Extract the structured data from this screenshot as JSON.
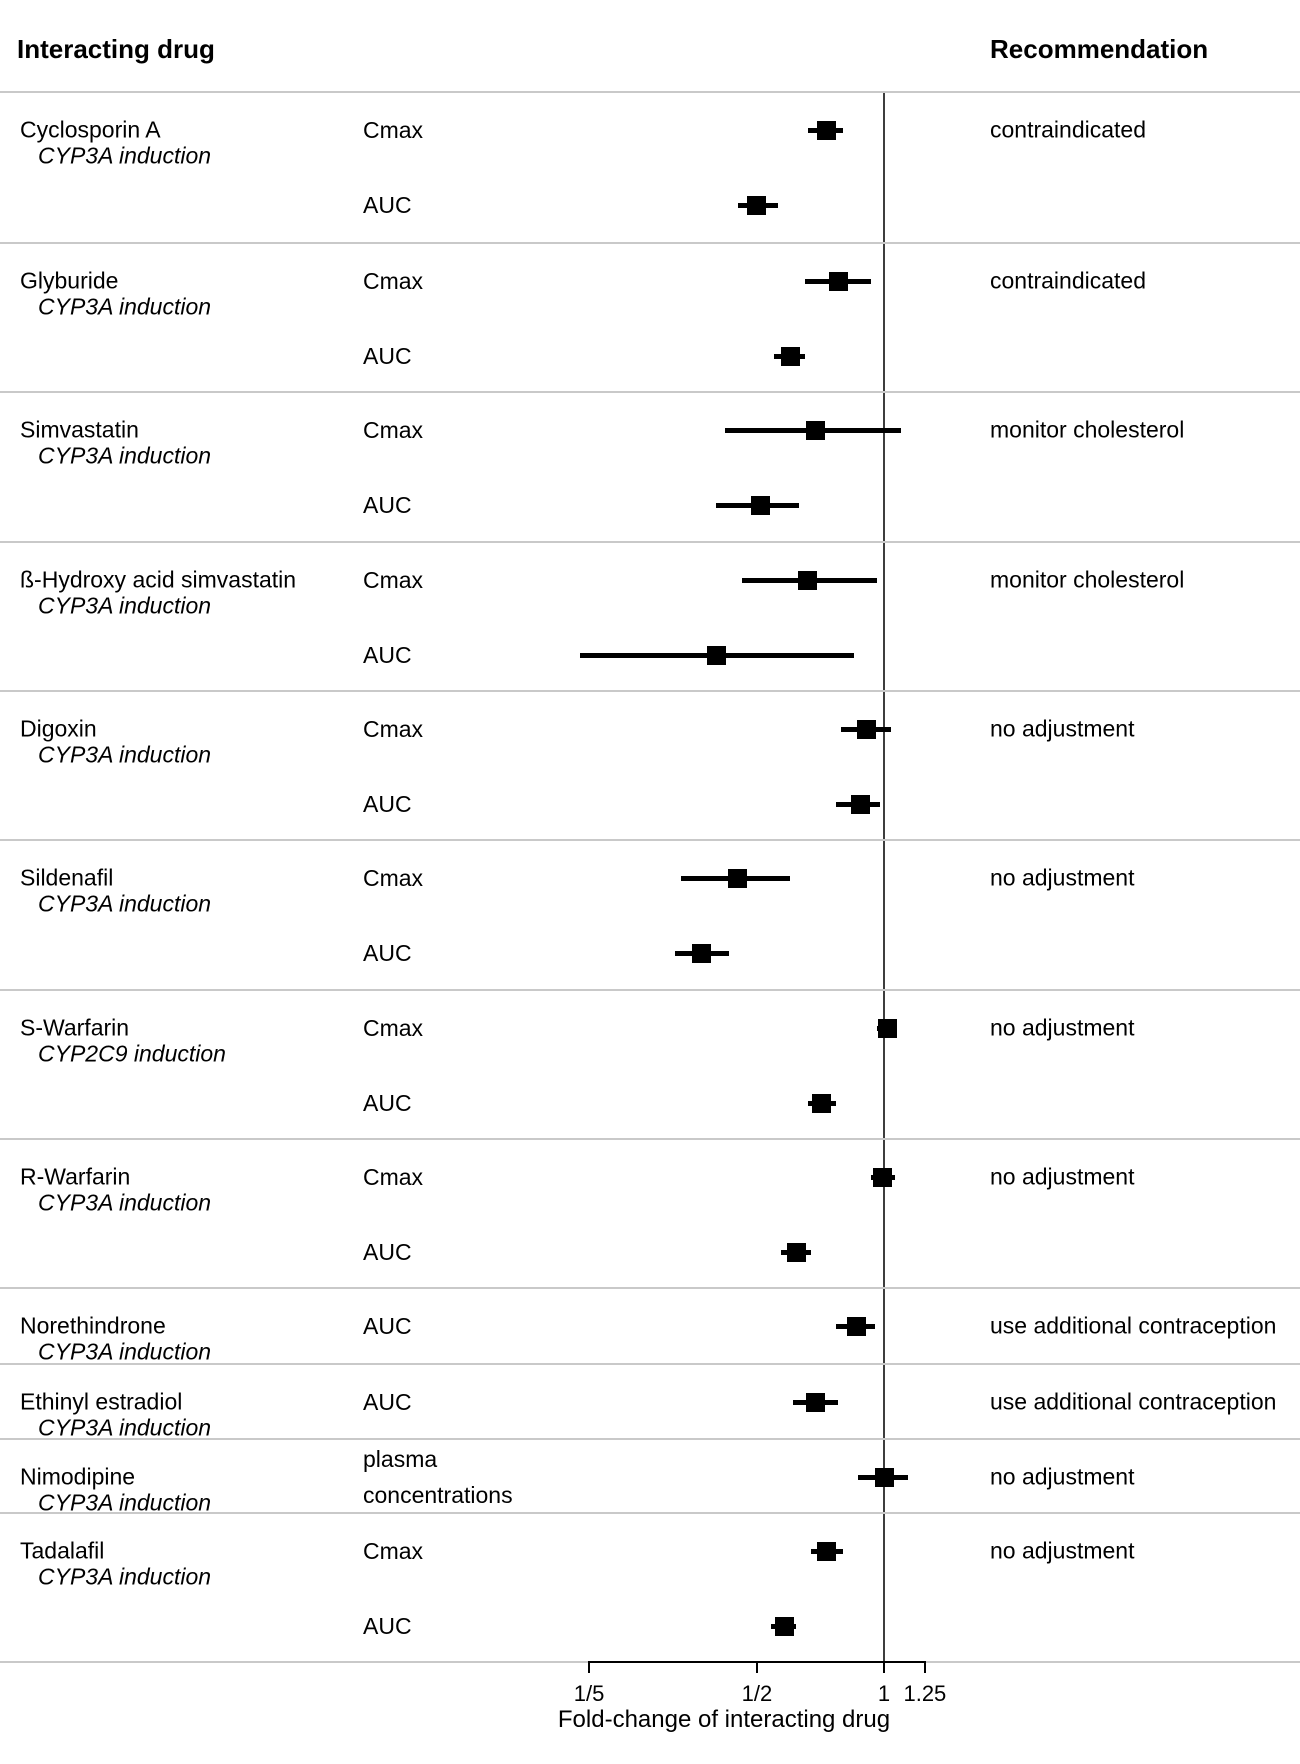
{
  "header": {
    "left_title": "Interacting drug",
    "right_title": "Recommendation"
  },
  "chart_data": {
    "type": "scatter",
    "subtype": "forest-plot",
    "title": "",
    "xlabel": "Fold-change of interacting drug",
    "x_scale": "log",
    "x_range": [
      0.2,
      1.25
    ],
    "x_ticks": [
      {
        "label": "1/5",
        "value": 0.2
      },
      {
        "label": "1/2",
        "value": 0.5
      },
      {
        "label": "1",
        "value": 1.0
      },
      {
        "label": "1.25",
        "value": 1.25
      }
    ],
    "reference_line_value": 1.0,
    "marker_color": "#000000",
    "grid": false,
    "groups": [
      {
        "drug": "Cyclosporin A",
        "mechanism": "CYP3A induction",
        "recommendation": "contraindicated",
        "rows": [
          {
            "measure": "Cmax",
            "value": 0.73,
            "ci_low": 0.66,
            "ci_high": 0.8
          },
          {
            "measure": "AUC",
            "value": 0.5,
            "ci_low": 0.45,
            "ci_high": 0.56
          }
        ]
      },
      {
        "drug": "Glyburide",
        "mechanism": "CYP3A induction",
        "recommendation": "contraindicated",
        "rows": [
          {
            "measure": "Cmax",
            "value": 0.78,
            "ci_low": 0.65,
            "ci_high": 0.93
          },
          {
            "measure": "AUC",
            "value": 0.6,
            "ci_low": 0.55,
            "ci_high": 0.65
          }
        ]
      },
      {
        "drug": "Simvastatin",
        "mechanism": "CYP3A induction",
        "recommendation": "monitor cholesterol",
        "rows": [
          {
            "measure": "Cmax",
            "value": 0.69,
            "ci_low": 0.42,
            "ci_high": 1.1
          },
          {
            "measure": "AUC",
            "value": 0.51,
            "ci_low": 0.4,
            "ci_high": 0.63
          }
        ]
      },
      {
        "drug": "ß-Hydroxy acid simvastatin",
        "mechanism": "CYP3A induction",
        "recommendation": "monitor cholesterol",
        "rows": [
          {
            "measure": "Cmax",
            "value": 0.66,
            "ci_low": 0.46,
            "ci_high": 0.96
          },
          {
            "measure": "AUC",
            "value": 0.4,
            "ci_low": 0.19,
            "ci_high": 0.85
          }
        ]
      },
      {
        "drug": "Digoxin",
        "mechanism": "CYP3A induction",
        "recommendation": "no adjustment",
        "rows": [
          {
            "measure": "Cmax",
            "value": 0.91,
            "ci_low": 0.79,
            "ci_high": 1.04
          },
          {
            "measure": "AUC",
            "value": 0.88,
            "ci_low": 0.77,
            "ci_high": 0.98
          }
        ]
      },
      {
        "drug": "Sildenafil",
        "mechanism": "CYP3A induction",
        "recommendation": "no adjustment",
        "rows": [
          {
            "measure": "Cmax",
            "value": 0.45,
            "ci_low": 0.33,
            "ci_high": 0.6
          },
          {
            "measure": "AUC",
            "value": 0.37,
            "ci_low": 0.32,
            "ci_high": 0.43
          }
        ]
      },
      {
        "drug": "S-Warfarin",
        "mechanism": "CYP2C9 induction",
        "recommendation": "no adjustment",
        "rows": [
          {
            "measure": "Cmax",
            "value": 1.02,
            "ci_low": 0.96,
            "ci_high": 1.07
          },
          {
            "measure": "AUC",
            "value": 0.71,
            "ci_low": 0.66,
            "ci_high": 0.77
          }
        ]
      },
      {
        "drug": "R-Warfarin",
        "mechanism": "CYP3A induction",
        "recommendation": "no adjustment",
        "rows": [
          {
            "measure": "Cmax",
            "value": 0.99,
            "ci_low": 0.93,
            "ci_high": 1.06
          },
          {
            "measure": "AUC",
            "value": 0.62,
            "ci_low": 0.57,
            "ci_high": 0.67
          }
        ]
      },
      {
        "drug": "Norethindrone",
        "mechanism": "CYP3A induction",
        "recommendation": "use additional contraception",
        "rows": [
          {
            "measure": "AUC",
            "value": 0.86,
            "ci_low": 0.77,
            "ci_high": 0.95
          }
        ]
      },
      {
        "drug": "Ethinyl estradiol",
        "mechanism": "CYP3A induction",
        "recommendation": "use additional contraception",
        "rows": [
          {
            "measure": "AUC",
            "value": 0.69,
            "ci_low": 0.61,
            "ci_high": 0.78
          }
        ]
      },
      {
        "drug": "Nimodipine",
        "mechanism": "CYP3A induction",
        "recommendation": "no adjustment",
        "rows": [
          {
            "measure": "plasma concentrations",
            "value": 1.0,
            "ci_low": 0.87,
            "ci_high": 1.14
          }
        ]
      },
      {
        "drug": "Tadalafil",
        "mechanism": "CYP3A induction",
        "recommendation": "no adjustment",
        "rows": [
          {
            "measure": "Cmax",
            "value": 0.73,
            "ci_low": 0.67,
            "ci_high": 0.8
          },
          {
            "measure": "AUC",
            "value": 0.58,
            "ci_low": 0.54,
            "ci_high": 0.62
          }
        ]
      }
    ]
  }
}
